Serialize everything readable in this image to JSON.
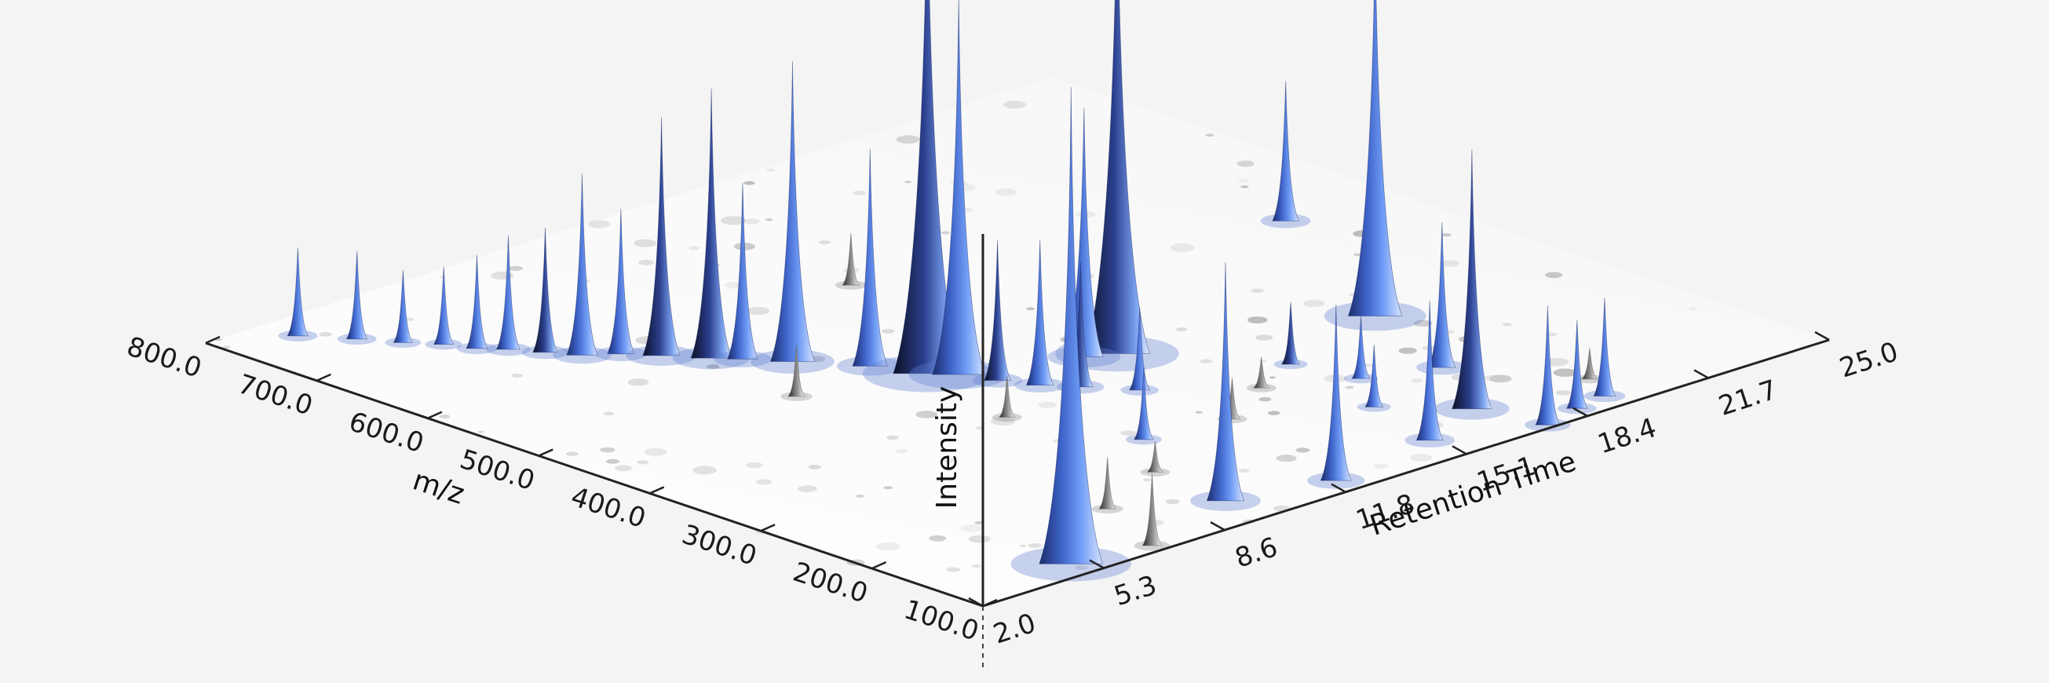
{
  "chart_data": {
    "type": "surface3d",
    "colors": {
      "background": "#f4f4f4",
      "peak_light": "#cfe0ff",
      "peak_mid": "#5b8bf0",
      "peak_dark": "#1c2d6b",
      "floor": "#ffffff"
    },
    "axes": {
      "mz": {
        "label": "m/z",
        "range": [
          100.0,
          800.0
        ],
        "ticks": [
          "100.0",
          "200.0",
          "300.0",
          "400.0",
          "500.0",
          "600.0",
          "700.0",
          "800.0"
        ]
      },
      "rt": {
        "label": "Retention Time",
        "range": [
          2.0,
          25.0
        ],
        "ticks": [
          "2.0",
          "5.3",
          "8.6",
          "11.8",
          "15.1",
          "18.4",
          "21.7",
          "25.0"
        ]
      },
      "intensity": {
        "label": "Intensity",
        "range": [
          0,
          1
        ]
      }
    },
    "peaks": [
      {
        "mz": 770,
        "rt": 3.6,
        "intensity": 0.17,
        "color": "blue"
      },
      {
        "mz": 740,
        "rt": 4.3,
        "intensity": 0.17,
        "color": "blue"
      },
      {
        "mz": 715,
        "rt": 4.8,
        "intensity": 0.14,
        "color": "blue"
      },
      {
        "mz": 695,
        "rt": 5.3,
        "intensity": 0.15,
        "color": "blue"
      },
      {
        "mz": 675,
        "rt": 5.6,
        "intensity": 0.18,
        "color": "blue"
      },
      {
        "mz": 660,
        "rt": 6.0,
        "intensity": 0.22,
        "color": "blue"
      },
      {
        "mz": 640,
        "rt": 6.4,
        "intensity": 0.24,
        "color": "dark"
      },
      {
        "mz": 620,
        "rt": 6.8,
        "intensity": 0.35,
        "color": "blue"
      },
      {
        "mz": 605,
        "rt": 7.4,
        "intensity": 0.28,
        "color": "blue"
      },
      {
        "mz": 585,
        "rt": 7.9,
        "intensity": 0.46,
        "color": "dark"
      },
      {
        "mz": 560,
        "rt": 8.5,
        "intensity": 0.52,
        "color": "dark"
      },
      {
        "mz": 545,
        "rt": 8.9,
        "intensity": 0.34,
        "color": "blue"
      },
      {
        "mz": 520,
        "rt": 9.5,
        "intensity": 0.58,
        "color": "blue"
      },
      {
        "mz": 480,
        "rt": 10.4,
        "intensity": 0.42,
        "color": "blue"
      },
      {
        "mz": 445,
        "rt": 10.9,
        "intensity": 1.0,
        "color": "dark"
      },
      {
        "mz": 430,
        "rt": 11.3,
        "intensity": 0.73,
        "color": "blue"
      },
      {
        "mz": 405,
        "rt": 11.6,
        "intensity": 0.27,
        "color": "dark"
      },
      {
        "mz": 380,
        "rt": 12.0,
        "intensity": 0.28,
        "color": "blue"
      },
      {
        "mz": 360,
        "rt": 12.5,
        "intensity": 0.24,
        "color": "dark"
      },
      {
        "mz": 330,
        "rt": 13.2,
        "intensity": 0.16,
        "color": "blue"
      },
      {
        "mz": 400,
        "rt": 13.8,
        "intensity": 0.48,
        "color": "blue"
      },
      {
        "mz": 390,
        "rt": 14.4,
        "intensity": 0.95,
        "color": "dark"
      },
      {
        "mz": 330,
        "rt": 19.6,
        "intensity": 0.75,
        "color": "blue"
      },
      {
        "mz": 300,
        "rt": 16.4,
        "intensity": 0.12,
        "color": "dark"
      },
      {
        "mz": 250,
        "rt": 16.8,
        "intensity": 0.12,
        "color": "blue"
      },
      {
        "mz": 230,
        "rt": 18.4,
        "intensity": 0.28,
        "color": "blue"
      },
      {
        "mz": 205,
        "rt": 15.8,
        "intensity": 0.12,
        "color": "blue"
      },
      {
        "mz": 160,
        "rt": 17.1,
        "intensity": 0.5,
        "color": "dark"
      },
      {
        "mz": 120,
        "rt": 5.0,
        "intensity": 0.92,
        "color": "blue"
      },
      {
        "mz": 110,
        "rt": 6.9,
        "intensity": 0.14,
        "color": "grey"
      },
      {
        "mz": 140,
        "rt": 9.8,
        "intensity": 0.46,
        "color": "blue"
      },
      {
        "mz": 120,
        "rt": 12.2,
        "intensity": 0.34,
        "color": "blue"
      },
      {
        "mz": 135,
        "rt": 15.2,
        "intensity": 0.27,
        "color": "blue"
      },
      {
        "mz": 105,
        "rt": 17.5,
        "intensity": 0.23,
        "color": "blue"
      },
      {
        "mz": 115,
        "rt": 18.6,
        "intensity": 0.17,
        "color": "blue"
      },
      {
        "mz": 120,
        "rt": 19.5,
        "intensity": 0.19,
        "color": "blue"
      },
      {
        "mz": 500,
        "rt": 22.3,
        "intensity": 0.27,
        "color": "blue"
      },
      {
        "mz": 260,
        "rt": 11.2,
        "intensity": 0.14,
        "color": "blue"
      },
      {
        "mz": 600,
        "rt": 13.5,
        "intensity": 0.1,
        "color": "grey"
      },
      {
        "mz": 180,
        "rt": 7.8,
        "intensity": 0.1,
        "color": "grey"
      },
      {
        "mz": 470,
        "rt": 8.1,
        "intensity": 0.1,
        "color": "grey"
      },
      {
        "mz": 350,
        "rt": 10.2,
        "intensity": 0.08,
        "color": "grey"
      },
      {
        "mz": 250,
        "rt": 13.3,
        "intensity": 0.08,
        "color": "grey"
      },
      {
        "mz": 210,
        "rt": 10.0,
        "intensity": 0.06,
        "color": "grey"
      },
      {
        "mz": 280,
        "rt": 15.0,
        "intensity": 0.06,
        "color": "grey"
      },
      {
        "mz": 150,
        "rt": 20.0,
        "intensity": 0.06,
        "color": "grey"
      }
    ]
  }
}
